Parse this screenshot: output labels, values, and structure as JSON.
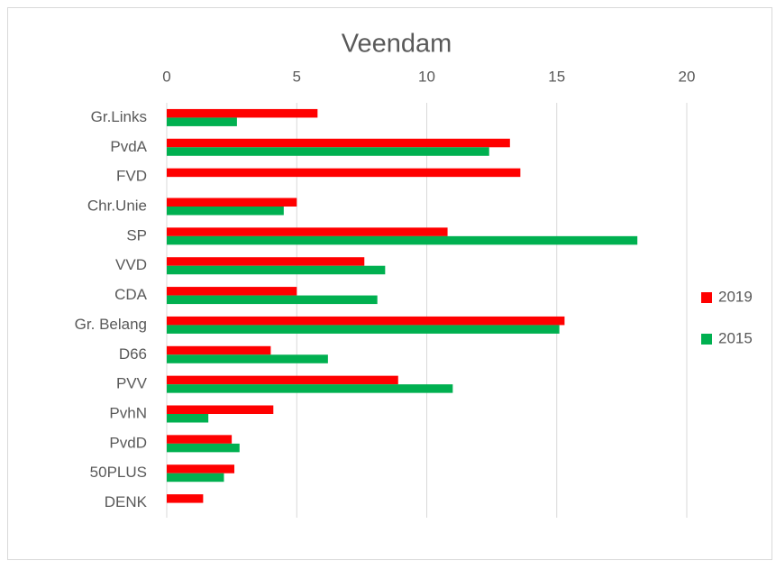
{
  "chart_data": {
    "type": "hbar",
    "title": "Veendam",
    "categories": [
      "Gr.Links",
      "PvdA",
      "FVD",
      "Chr.Unie",
      "SP",
      "VVD",
      "CDA",
      "Gr. Belang",
      "D66",
      "PVV",
      "PvhN",
      "PvdD",
      "50PLUS",
      "DENK"
    ],
    "series": [
      {
        "name": "2019",
        "color": "#ff0000",
        "values": [
          5.8,
          13.2,
          13.6,
          5.0,
          10.8,
          7.6,
          5.0,
          15.3,
          4.0,
          8.9,
          4.1,
          2.5,
          2.6,
          1.4
        ]
      },
      {
        "name": "2015",
        "color": "#00b050",
        "values": [
          2.7,
          12.4,
          null,
          4.5,
          18.1,
          8.4,
          8.1,
          15.1,
          6.2,
          11.0,
          1.6,
          2.8,
          2.2,
          null
        ]
      }
    ],
    "xlim": [
      0,
      20
    ],
    "xticks": [
      0,
      5,
      10,
      15,
      20
    ],
    "grid": true,
    "legend": "right"
  }
}
